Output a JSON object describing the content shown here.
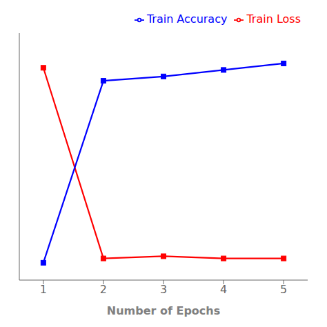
{
  "chart_data": {
    "type": "line",
    "xlabel": "Number of Epochs",
    "x": [
      1,
      2,
      3,
      4,
      5
    ],
    "series": [
      {
        "name": "Train Loss",
        "color": "#ff0000",
        "values": [
          0.92,
          0.04,
          0.05,
          0.04,
          0.04
        ]
      },
      {
        "name": "Train Accuracy",
        "color": "#0000ff",
        "values": [
          0.02,
          0.86,
          0.88,
          0.91,
          0.94
        ]
      }
    ],
    "xlim": [
      0.6,
      5.4
    ],
    "ylim": [
      -0.06,
      1.08
    ],
    "xticks": [
      1,
      2,
      3,
      4,
      5
    ],
    "tick_labels": "x",
    "legend": "upper right",
    "marker": "square",
    "grid": false
  }
}
